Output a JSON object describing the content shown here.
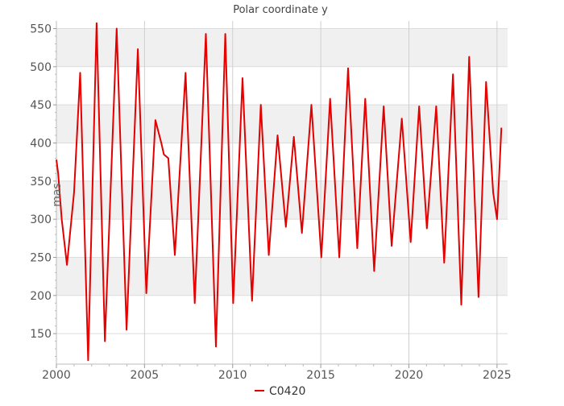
{
  "chart_data": {
    "type": "line",
    "title": "Polar coordinate y",
    "ylabel": "mas",
    "xlabel": "",
    "xlim": [
      2000,
      2025.6
    ],
    "ylim": [
      110,
      560
    ],
    "xticks": [
      2000,
      2005,
      2010,
      2015,
      2020,
      2025
    ],
    "yticks": [
      150,
      200,
      250,
      300,
      350,
      400,
      450,
      500,
      550
    ],
    "grid": true,
    "alternating_y_bands": true,
    "band_color": "#f0f0f0",
    "line_color": "#e50000",
    "legend": {
      "position": "bottom-center"
    },
    "series": [
      {
        "name": "C0420",
        "x": [
          2000.0,
          2000.1,
          2000.3,
          2000.6,
          2001.0,
          2001.35,
          2001.8,
          2002.28,
          2002.75,
          2003.42,
          2003.98,
          2004.62,
          2005.1,
          2005.62,
          2005.95,
          2006.1,
          2006.35,
          2006.72,
          2007.33,
          2007.85,
          2008.48,
          2009.05,
          2009.58,
          2010.03,
          2010.56,
          2011.1,
          2011.6,
          2012.05,
          2012.55,
          2013.02,
          2013.47,
          2013.93,
          2014.47,
          2015.03,
          2015.53,
          2016.05,
          2016.55,
          2017.07,
          2017.52,
          2018.03,
          2018.57,
          2019.02,
          2019.6,
          2020.1,
          2020.58,
          2021.02,
          2021.55,
          2022.0,
          2022.5,
          2022.97,
          2023.42,
          2023.95,
          2024.38,
          2024.78,
          2025.0,
          2025.25
        ],
        "y": [
          378,
          360,
          300,
          240,
          335,
          492,
          115,
          557,
          140,
          550,
          155,
          523,
          203,
          430,
          400,
          385,
          380,
          253,
          492,
          190,
          543,
          133,
          543,
          190,
          485,
          193,
          450,
          253,
          410,
          290,
          408,
          282,
          450,
          250,
          458,
          250,
          498,
          262,
          458,
          232,
          448,
          265,
          432,
          270,
          448,
          288,
          448,
          243,
          490,
          188,
          513,
          198,
          480,
          335,
          300,
          420
        ]
      }
    ]
  }
}
